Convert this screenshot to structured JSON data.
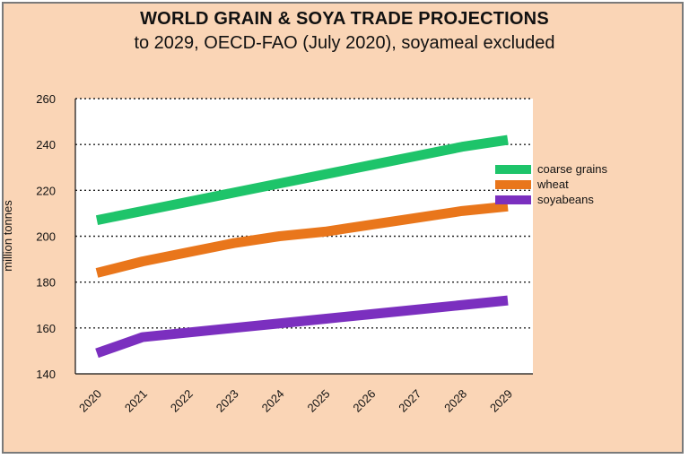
{
  "chart_data": {
    "type": "line",
    "title": "WORLD GRAIN & SOYA TRADE PROJECTIONS",
    "subtitle": "to 2029, OECD-FAO  (July 2020), soyameal excluded",
    "ylabel": "million  tonnes",
    "xlabel": "",
    "ylim": [
      140,
      260
    ],
    "yticks": [
      140,
      160,
      180,
      200,
      220,
      240,
      260
    ],
    "grid": "horizontal dotted",
    "legend_position": "right",
    "categories": [
      "2020",
      "2021",
      "2022",
      "2023",
      "2024",
      "2025",
      "2026",
      "2027",
      "2028",
      "2029"
    ],
    "series": [
      {
        "name": "coarse grains",
        "color": "#1ec46a",
        "values": [
          207,
          211,
          215,
          219,
          223,
          227,
          231,
          235,
          239,
          242
        ]
      },
      {
        "name": "wheat",
        "color": "#e9761b",
        "values": [
          184,
          189,
          193,
          197,
          200,
          202,
          205,
          208,
          211,
          213
        ]
      },
      {
        "name": "soyabeans",
        "color": "#7b2fbf",
        "values": [
          149,
          156,
          158,
          160,
          162,
          164,
          166,
          168,
          170,
          172
        ]
      }
    ]
  }
}
